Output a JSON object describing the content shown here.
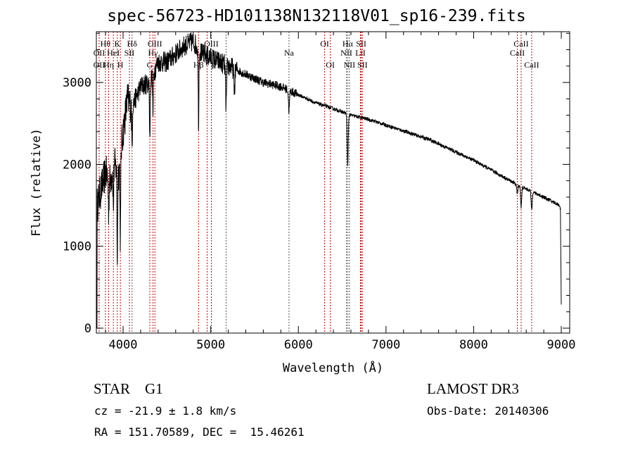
{
  "chart_data": {
    "type": "line",
    "title": "spec-56723-HD101138N132118V01_sp16-239.fits",
    "xlabel": "Wavelength (Å)",
    "ylabel": "Flux (relative)",
    "xlim": [
      3695,
      9096
    ],
    "ylim": [
      -60,
      3620
    ],
    "xticks": [
      4000,
      5000,
      6000,
      7000,
      8000,
      9000
    ],
    "yticks": [
      0,
      1000,
      2000,
      3000
    ],
    "grid": false,
    "continuum": [
      [
        3700,
        0
      ],
      [
        3705,
        1500
      ],
      [
        3750,
        1700
      ],
      [
        3800,
        1900
      ],
      [
        3850,
        1800
      ],
      [
        3900,
        2000
      ],
      [
        3950,
        1900
      ],
      [
        4000,
        2400
      ],
      [
        4050,
        2800
      ],
      [
        4100,
        2700
      ],
      [
        4200,
        2950
      ],
      [
        4300,
        3000
      ],
      [
        4400,
        3250
      ],
      [
        4500,
        3250
      ],
      [
        4600,
        3350
      ],
      [
        4700,
        3450
      ],
      [
        4800,
        3500
      ],
      [
        4900,
        3350
      ],
      [
        5000,
        3300
      ],
      [
        5100,
        3250
      ],
      [
        5200,
        3200
      ],
      [
        5400,
        3100
      ],
      [
        5600,
        3000
      ],
      [
        5800,
        2950
      ],
      [
        6000,
        2850
      ],
      [
        6200,
        2750
      ],
      [
        6400,
        2680
      ],
      [
        6600,
        2600
      ],
      [
        6800,
        2550
      ],
      [
        7000,
        2480
      ],
      [
        7500,
        2300
      ],
      [
        8000,
        2050
      ],
      [
        8500,
        1750
      ],
      [
        8800,
        1600
      ],
      [
        8980,
        1500
      ],
      [
        8990,
        1450
      ],
      [
        9000,
        300
      ]
    ],
    "absorption": [
      [
        3934,
        1100
      ],
      [
        3969,
        1000
      ],
      [
        3835,
        400
      ],
      [
        3889,
        500
      ],
      [
        4102,
        500
      ],
      [
        4305,
        700
      ],
      [
        4341,
        500
      ],
      [
        4861,
        900
      ],
      [
        5175,
        500
      ],
      [
        5270,
        250
      ],
      [
        5893,
        250
      ],
      [
        6563,
        650
      ],
      [
        8498,
        120
      ],
      [
        8542,
        250
      ],
      [
        8662,
        220
      ]
    ],
    "lines": [
      {
        "w": 3727,
        "label": "OII",
        "row": 2,
        "color": "#cc0000"
      },
      {
        "w": 3727,
        "label": "OII",
        "row": 3,
        "color": "#cc0000"
      },
      {
        "w": 3798,
        "label": "Hθ",
        "row": 1,
        "color": "#cc0000"
      },
      {
        "w": 3835,
        "label": "Hη",
        "row": 3,
        "color": "#cc0000"
      },
      {
        "w": 3889,
        "label": "HeI",
        "row": 2,
        "color": "#cc0000"
      },
      {
        "w": 3934,
        "label": "K",
        "row": 1,
        "color": "#cc0000"
      },
      {
        "w": 3969,
        "label": "H",
        "row": 3,
        "color": "#cc0000"
      },
      {
        "w": 4072,
        "label": "SII",
        "row": 2,
        "color": "#cc0000"
      },
      {
        "w": 4102,
        "label": "Hδ",
        "row": 1,
        "color": "#555555"
      },
      {
        "w": 4305,
        "label": "G",
        "row": 3,
        "color": "#cc0000"
      },
      {
        "w": 4341,
        "label": "Hγ",
        "row": 2,
        "color": "#cc0000"
      },
      {
        "w": 4363,
        "label": "OIII",
        "row": 1,
        "color": "#cc0000"
      },
      {
        "w": 4861,
        "label": "Hβ",
        "row": 3,
        "color": "#cc0000"
      },
      {
        "w": 4959,
        "label": "OIII",
        "row": 2,
        "color": "#cc0000"
      },
      {
        "w": 5007,
        "label": "OIII",
        "row": 1,
        "color": "#cc0000"
      },
      {
        "w": 5175,
        "label": "",
        "row": 0,
        "color": "#555555"
      },
      {
        "w": 5893,
        "label": "Na",
        "row": 2,
        "color": "#555555"
      },
      {
        "w": 6300,
        "label": "OI",
        "row": 1,
        "color": "#cc0000"
      },
      {
        "w": 6364,
        "label": "OI",
        "row": 3,
        "color": "#cc0000"
      },
      {
        "w": 6548,
        "label": "NII",
        "row": 2,
        "color": "#555555"
      },
      {
        "w": 6563,
        "label": "Hα",
        "row": 1,
        "color": "#555555"
      },
      {
        "w": 6583,
        "label": "NII",
        "row": 3,
        "color": "#555555"
      },
      {
        "w": 6708,
        "label": "LiI",
        "row": 2,
        "color": "#cc0000"
      },
      {
        "w": 6717,
        "label": "SII",
        "row": 1,
        "color": "#cc0000"
      },
      {
        "w": 6731,
        "label": "SII",
        "row": 3,
        "color": "#cc0000"
      },
      {
        "w": 8498,
        "label": "CaII",
        "row": 2,
        "color": "#cc0000"
      },
      {
        "w": 8542,
        "label": "CaII",
        "row": 1,
        "color": "#cc0000"
      },
      {
        "w": 8662,
        "label": "CaII",
        "row": 3,
        "color": "#cc0000"
      }
    ]
  },
  "info": {
    "object": "STAR    G1",
    "cz": "cz = -21.9 ± 1.8 km/s",
    "coords": "RA = 151.70589, DEC =  15.46261",
    "survey": "LAMOST DR3",
    "obs_date": "Obs-Date: 20140306"
  }
}
